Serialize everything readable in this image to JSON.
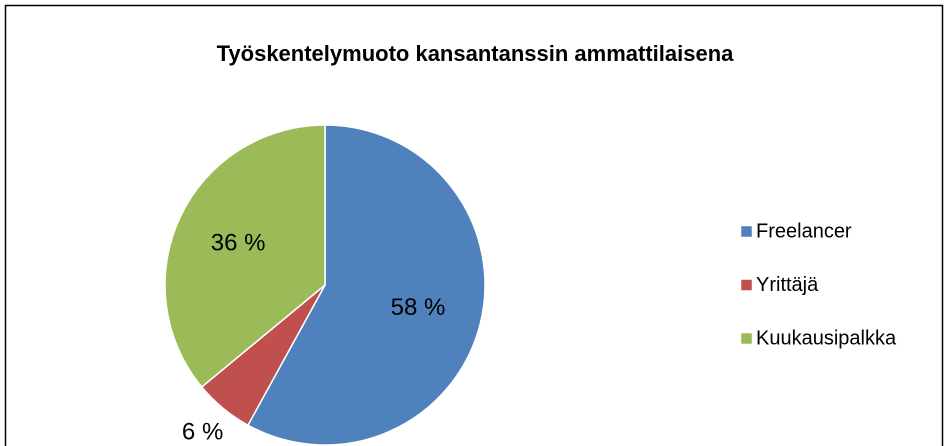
{
  "chart_data": {
    "type": "pie",
    "title": "Työskentelymuoto kansantanssin ammattilaisena",
    "categories": [
      "Freelancer",
      "Yrittäjä",
      "Kuukausipalkka"
    ],
    "values": [
      58,
      6,
      36
    ],
    "value_labels": [
      "58 %",
      "6 %",
      "36 %"
    ],
    "colors": [
      "#4f81bd",
      "#c0504d",
      "#9bbb59"
    ],
    "legend": "right"
  }
}
